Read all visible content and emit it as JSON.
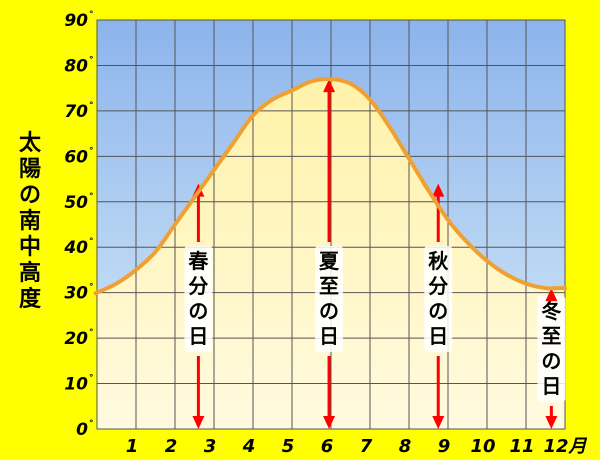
{
  "chart_data": {
    "type": "area",
    "title": "",
    "ylabel": "太陽の南中高度",
    "xlabel": "",
    "xunit": "12月",
    "ylim": [
      0,
      90
    ],
    "xlim": [
      0,
      12
    ],
    "grid": true,
    "y_ticks": [
      0,
      10,
      20,
      30,
      40,
      50,
      60,
      70,
      80,
      90
    ],
    "y_tick_suffix": "°",
    "x_ticks": [
      "1",
      "2",
      "3",
      "4",
      "5",
      "6",
      "7",
      "8",
      "9",
      "10",
      "11",
      "12"
    ],
    "series": [
      {
        "x": [
          0,
          0.5,
          1,
          1.5,
          2,
          2.5,
          3,
          3.5,
          4,
          4.5,
          5,
          5.5,
          6,
          6.5,
          7,
          7.5,
          8,
          8.5,
          9,
          9.5,
          10,
          10.5,
          11,
          11.5,
          11.8
        ],
        "y": [
          30,
          32,
          35,
          39,
          45,
          51,
          57,
          63,
          69,
          72.5,
          74.5,
          76.5,
          77,
          76,
          72.5,
          66.5,
          59.5,
          52.5,
          46,
          41,
          37,
          34,
          32,
          31,
          31
        ],
        "color": "#f0a030"
      }
    ],
    "annotations": [
      {
        "label": "春分の日",
        "x": 2.6,
        "y": 54,
        "color": "#ff0000"
      },
      {
        "label": "夏至の日",
        "x": 5.95,
        "y": 77,
        "color": "#ff0000"
      },
      {
        "label": "秋分の日",
        "x": 8.75,
        "y": 54,
        "color": "#ff0000"
      },
      {
        "label": "冬至の日",
        "x": 11.65,
        "y": 31,
        "color": "#ff0000"
      }
    ],
    "colors": {
      "sky_top": "#8cb4ec",
      "sky_bottom": "#d8ecf8",
      "area_top": "#fff2a8",
      "area_bottom": "#fffae0",
      "line": "#f0a030",
      "arrow": "#ff0000",
      "page_bg": "#ffff00",
      "grid": "#555555"
    }
  }
}
